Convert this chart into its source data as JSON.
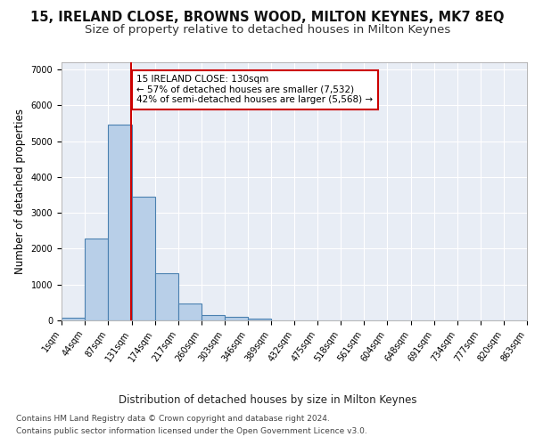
{
  "title": "15, IRELAND CLOSE, BROWNS WOOD, MILTON KEYNES, MK7 8EQ",
  "subtitle": "Size of property relative to detached houses in Milton Keynes",
  "xlabel": "Distribution of detached houses by size in Milton Keynes",
  "ylabel": "Number of detached properties",
  "footer_line1": "Contains HM Land Registry data © Crown copyright and database right 2024.",
  "footer_line2": "Contains public sector information licensed under the Open Government Licence v3.0.",
  "bar_edges": [
    1,
    44,
    87,
    131,
    174,
    217,
    260,
    303,
    346,
    389,
    432,
    475,
    518,
    561,
    604,
    648,
    691,
    734,
    777,
    820,
    863
  ],
  "bar_heights": [
    75,
    2285,
    5450,
    3440,
    1310,
    465,
    160,
    90,
    55,
    0,
    0,
    0,
    0,
    0,
    0,
    0,
    0,
    0,
    0,
    0
  ],
  "bar_color": "#b8cfe8",
  "bar_edge_color": "#4a80b0",
  "bar_linewidth": 0.8,
  "red_line_x": 130,
  "red_line_color": "#cc0000",
  "annotation_text": "15 IRELAND CLOSE: 130sqm\n← 57% of detached houses are smaller (7,532)\n42% of semi-detached houses are larger (5,568) →",
  "annotation_box_color": "#ffffff",
  "annotation_box_edgecolor": "#cc0000",
  "ylim": [
    0,
    7200
  ],
  "xlim": [
    1,
    863
  ],
  "yticks": [
    0,
    1000,
    2000,
    3000,
    4000,
    5000,
    6000,
    7000
  ],
  "plot_bg_color": "#e8edf5",
  "grid_color": "#ffffff",
  "title_fontsize": 10.5,
  "subtitle_fontsize": 9.5,
  "axis_label_fontsize": 8.5,
  "tick_fontsize": 7,
  "annotation_fontsize": 7.5,
  "footer_fontsize": 6.5
}
